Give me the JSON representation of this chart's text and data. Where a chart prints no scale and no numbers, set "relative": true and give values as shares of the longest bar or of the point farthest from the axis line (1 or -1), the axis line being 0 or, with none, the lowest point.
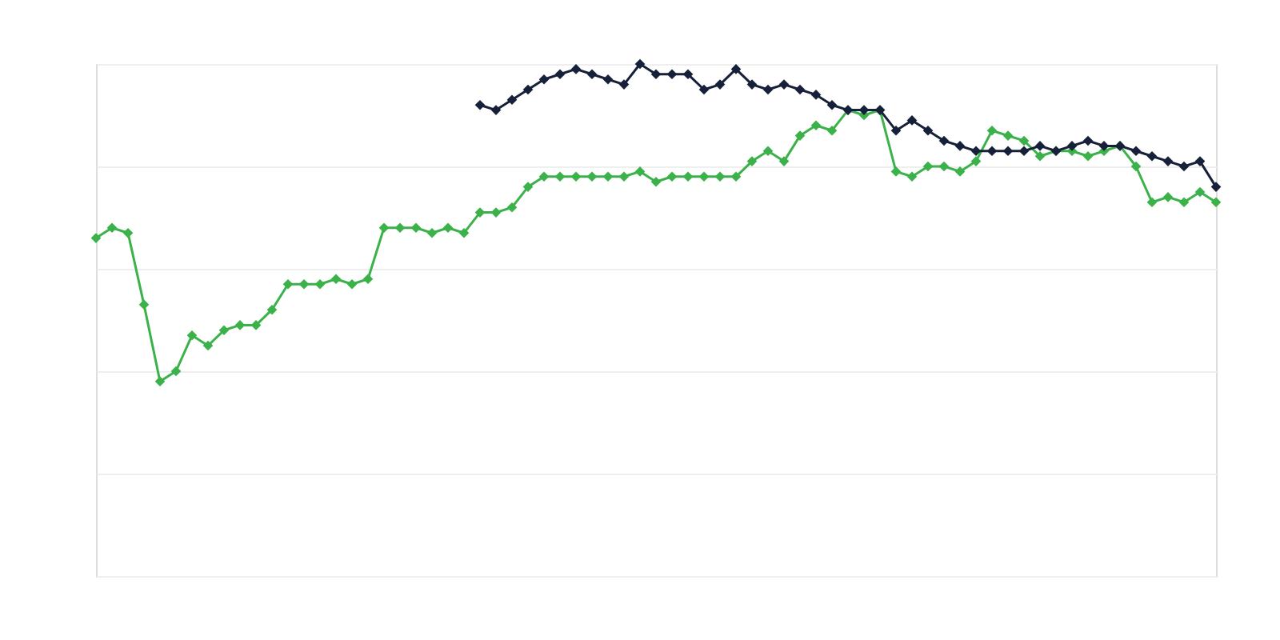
{
  "chart_data": {
    "type": "line",
    "relative": true,
    "grid": "y",
    "marker": "diamond",
    "line_style": "solid",
    "categories": [
      null,
      null,
      null,
      null,
      null,
      null,
      null,
      null,
      null,
      null,
      null,
      null,
      null,
      null,
      null,
      null,
      null,
      null,
      null,
      null,
      null,
      null,
      null,
      null,
      null,
      null,
      null,
      null,
      null,
      null,
      null,
      null,
      null,
      null,
      null,
      null,
      null,
      null,
      null,
      null,
      null,
      null,
      null,
      null,
      null,
      null,
      null,
      null,
      null,
      null,
      null,
      null,
      null,
      null,
      null,
      null,
      null,
      null,
      null,
      null,
      null,
      null,
      null,
      null,
      null,
      null,
      null,
      null,
      null,
      null,
      null
    ],
    "series": [
      {
        "color": "#3bb14a",
        "values": [
          0.66,
          0.68,
          0.67,
          0.53,
          0.38,
          0.4,
          0.47,
          0.45,
          0.48,
          0.49,
          0.49,
          0.52,
          0.57,
          0.57,
          0.57,
          0.58,
          0.57,
          0.58,
          0.68,
          0.68,
          0.68,
          0.67,
          0.68,
          0.67,
          0.71,
          0.71,
          0.72,
          0.76,
          0.78,
          0.78,
          0.78,
          0.78,
          0.78,
          0.78,
          0.79,
          0.77,
          0.78,
          0.78,
          0.78,
          0.78,
          0.78,
          0.81,
          0.83,
          0.81,
          0.86,
          0.88,
          0.87,
          0.91,
          0.9,
          0.91,
          0.79,
          0.78,
          0.8,
          0.8,
          0.79,
          0.81,
          0.87,
          0.86,
          0.85,
          0.82,
          0.83,
          0.83,
          0.82,
          0.83,
          0.84,
          0.8,
          0.73,
          0.74,
          0.73,
          0.75,
          0.73
        ]
      },
      {
        "color": "#17203a",
        "values": [
          null,
          null,
          null,
          null,
          null,
          null,
          null,
          null,
          null,
          null,
          null,
          null,
          null,
          null,
          null,
          null,
          null,
          null,
          null,
          null,
          null,
          null,
          null,
          null,
          0.92,
          0.91,
          0.93,
          0.95,
          0.97,
          0.98,
          0.99,
          0.98,
          0.97,
          0.96,
          1.0,
          0.98,
          0.98,
          0.98,
          0.95,
          0.96,
          0.99,
          0.96,
          0.95,
          0.96,
          0.95,
          0.94,
          0.92,
          0.91,
          0.91,
          0.91,
          0.87,
          0.89,
          0.87,
          0.85,
          0.84,
          0.83,
          0.83,
          0.83,
          0.83,
          0.84,
          0.83,
          0.84,
          0.85,
          0.84,
          0.84,
          0.83,
          0.82,
          0.81,
          0.8,
          0.81,
          0.76
        ]
      }
    ]
  }
}
